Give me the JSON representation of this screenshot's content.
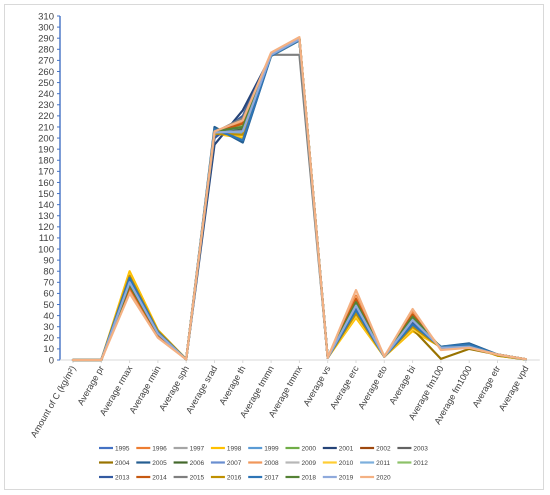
{
  "chart_data": {
    "type": "line",
    "title": "",
    "xlabel": "",
    "ylabel": "",
    "ylim": [
      0,
      310
    ],
    "ytick_step": 10,
    "grid": false,
    "legend_position": "bottom",
    "categories": [
      "Amount of C (kg/m²)",
      "Average pr",
      "Average rmax",
      "Average rmin",
      "Average sph",
      "Average srad",
      "Average th",
      "Average tmmn",
      "Average tmmx",
      "Average vs",
      "Average erc",
      "Average eto",
      "Average bi",
      "Average fm100",
      "Average fm1000",
      "Average etr",
      "Average vpd"
    ],
    "series": [
      {
        "name": "1995",
        "color": "#4472C4",
        "values": [
          0,
          0,
          72,
          25,
          0.5,
          205,
          212,
          275,
          289,
          2,
          52,
          3,
          38,
          11,
          13,
          5,
          0.6
        ]
      },
      {
        "name": "1996",
        "color": "#ED7D31",
        "values": [
          0,
          0,
          65,
          22,
          0.5,
          206,
          214,
          276,
          290,
          2,
          58,
          3,
          43,
          10,
          12,
          5,
          0.7
        ]
      },
      {
        "name": "1997",
        "color": "#A5A5A5",
        "values": [
          0,
          0,
          68,
          24,
          0.5,
          205,
          205,
          275,
          288,
          2,
          50,
          3,
          36,
          11,
          12,
          5,
          0.6
        ]
      },
      {
        "name": "1998",
        "color": "#FFC000",
        "values": [
          0,
          0,
          80,
          27,
          0.6,
          204,
          200,
          274,
          288,
          2,
          38,
          3,
          26,
          12,
          14,
          4,
          0.5
        ]
      },
      {
        "name": "1999",
        "color": "#5B9BD5",
        "values": [
          0,
          0,
          70,
          24,
          0.5,
          205,
          205,
          275,
          289,
          2,
          48,
          3,
          35,
          11,
          12,
          5,
          0.6
        ]
      },
      {
        "name": "2000",
        "color": "#70AD47",
        "values": [
          0,
          0,
          68,
          23,
          0.5,
          207,
          210,
          276,
          290,
          2,
          55,
          3,
          40,
          10,
          12,
          5,
          0.7
        ]
      },
      {
        "name": "2001",
        "color": "#264478",
        "values": [
          0,
          0,
          74,
          26,
          0.5,
          194,
          225,
          274,
          288,
          2,
          46,
          3,
          34,
          12,
          13,
          5,
          0.6
        ]
      },
      {
        "name": "2002",
        "color": "#9E480E",
        "values": [
          0,
          0,
          66,
          23,
          0.5,
          205,
          212,
          276,
          290,
          2,
          54,
          3,
          40,
          10,
          12,
          5,
          0.7
        ]
      },
      {
        "name": "2003",
        "color": "#636363",
        "values": [
          0,
          0,
          70,
          24,
          0.5,
          203,
          208,
          275,
          289,
          2,
          50,
          3,
          37,
          11,
          12,
          5,
          0.6
        ]
      },
      {
        "name": "2004",
        "color": "#997300",
        "values": [
          0,
          0,
          75,
          26,
          0.6,
          205,
          203,
          275,
          289,
          2,
          42,
          3,
          28,
          1,
          10,
          5,
          0.5
        ]
      },
      {
        "name": "2005",
        "color": "#255E91",
        "values": [
          0,
          0,
          76,
          26,
          0.5,
          210,
          196,
          274,
          288,
          2,
          44,
          3,
          30,
          12,
          15,
          5,
          0.5
        ]
      },
      {
        "name": "2006",
        "color": "#43682B",
        "values": [
          0,
          0,
          69,
          24,
          0.5,
          206,
          209,
          276,
          290,
          2,
          50,
          3,
          38,
          11,
          12,
          5,
          0.6
        ]
      },
      {
        "name": "2007",
        "color": "#698ED0",
        "values": [
          0,
          0,
          70,
          24,
          0.5,
          205,
          210,
          275,
          289,
          2,
          48,
          3,
          36,
          11,
          12,
          5,
          0.6
        ]
      },
      {
        "name": "2008",
        "color": "#F1975A",
        "values": [
          0,
          0,
          64,
          22,
          0.5,
          206,
          213,
          276,
          290,
          2,
          57,
          3,
          42,
          10,
          12,
          5,
          0.7
        ]
      },
      {
        "name": "2009",
        "color": "#B7B7B7",
        "values": [
          0,
          0,
          68,
          24,
          0.5,
          204,
          206,
          275,
          289,
          2,
          50,
          3,
          37,
          11,
          12,
          5,
          0.6
        ]
      },
      {
        "name": "2010",
        "color": "#FFCD33",
        "values": [
          0,
          0,
          77,
          26,
          0.6,
          204,
          202,
          274,
          288,
          2,
          40,
          3,
          28,
          12,
          13,
          4,
          0.5
        ]
      },
      {
        "name": "2011",
        "color": "#7CAFDD",
        "values": [
          0,
          0,
          71,
          25,
          0.5,
          205,
          205,
          275,
          289,
          2,
          47,
          3,
          34,
          11,
          12,
          5,
          0.6
        ]
      },
      {
        "name": "2012",
        "color": "#8CC168",
        "values": [
          0,
          0,
          67,
          23,
          0.5,
          207,
          211,
          276,
          290,
          2,
          54,
          3,
          40,
          10,
          12,
          5,
          0.7
        ]
      },
      {
        "name": "2013",
        "color": "#335AA1",
        "values": [
          0,
          0,
          72,
          25,
          0.5,
          200,
          220,
          275,
          289,
          2,
          47,
          3,
          34,
          11,
          13,
          5,
          0.6
        ]
      },
      {
        "name": "2014",
        "color": "#C65911",
        "values": [
          0,
          0,
          66,
          23,
          0.5,
          205,
          213,
          276,
          290,
          2,
          55,
          3,
          41,
          10,
          12,
          5,
          0.7
        ]
      },
      {
        "name": "2015",
        "color": "#7F7F7F",
        "values": [
          0,
          0,
          69,
          24,
          0.5,
          205,
          218,
          275,
          275,
          2,
          50,
          3,
          36,
          11,
          12,
          5,
          0.6
        ]
      },
      {
        "name": "2016",
        "color": "#BF9000",
        "values": [
          0,
          0,
          76,
          26,
          0.6,
          204,
          203,
          275,
          288,
          2,
          42,
          3,
          30,
          11,
          13,
          4,
          0.5
        ]
      },
      {
        "name": "2017",
        "color": "#2E75B6",
        "values": [
          0,
          0,
          74,
          25,
          0.5,
          208,
          198,
          274,
          288,
          2,
          45,
          3,
          32,
          12,
          14,
          5,
          0.5
        ]
      },
      {
        "name": "2018",
        "color": "#548235",
        "values": [
          0,
          0,
          68,
          24,
          0.5,
          206,
          210,
          276,
          290,
          2,
          52,
          3,
          39,
          11,
          12,
          5,
          0.6
        ]
      },
      {
        "name": "2019",
        "color": "#8FAADC",
        "values": [
          0,
          0,
          70,
          24,
          0.5,
          205,
          206,
          275,
          289,
          2,
          49,
          3,
          36,
          11,
          12,
          5,
          0.6
        ]
      },
      {
        "name": "2020",
        "color": "#F4B183",
        "values": [
          0,
          0,
          60,
          20,
          0.5,
          206,
          216,
          277,
          291,
          2,
          63,
          3,
          46,
          9,
          11,
          5,
          0.7
        ]
      }
    ]
  }
}
